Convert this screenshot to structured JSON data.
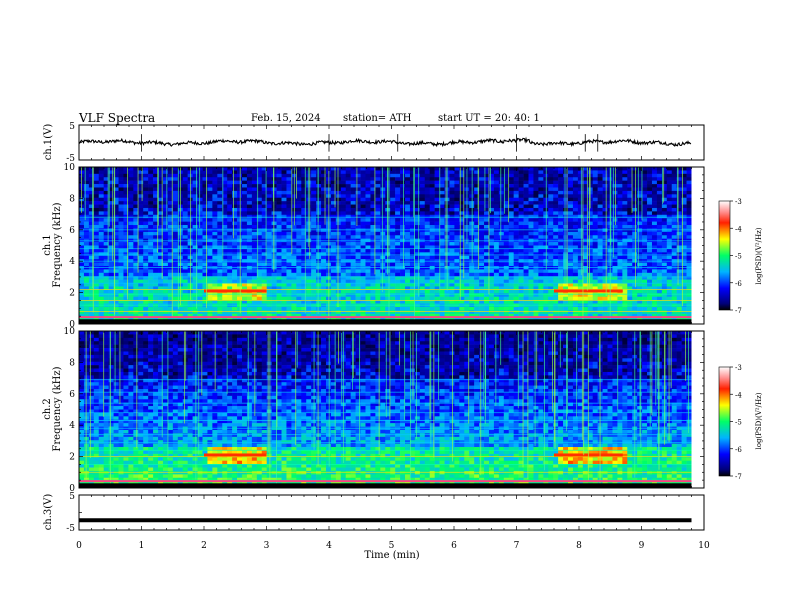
{
  "header": {
    "title": "VLF  Spectra",
    "date": "Feb. 15, 2024",
    "station": "station= ATH",
    "start_ut": "start  UT  =    20: 40: 1"
  },
  "chart_data": [
    {
      "id": "ch1-waveform",
      "type": "line",
      "ylabel": "ch.1(V)",
      "xlim": [
        0,
        10
      ],
      "ylim": [
        -5,
        5
      ],
      "yticks": [
        "5",
        "-5"
      ],
      "trace_end_min": 9.8,
      "trace_level_v": 0,
      "spikes_min": [
        1.0,
        4.0,
        5.1,
        7.0,
        8.1,
        8.3
      ]
    },
    {
      "id": "ch1-spectrogram",
      "type": "heatmap",
      "ylabel_top": "ch.1",
      "ylabel": "Frequency  (kHz)",
      "xlim": [
        0,
        10
      ],
      "ylim": [
        0,
        10
      ],
      "yticks": [
        "0",
        "2",
        "4",
        "6",
        "8",
        "10"
      ],
      "colorbar": {
        "label": "log(PSD)(V²/Hz)",
        "range": [
          -7,
          -3
        ],
        "ticks": [
          "-3",
          "-4",
          "-5",
          "-6",
          "-7"
        ]
      },
      "bands_khz": [
        0.4,
        0.8,
        1.2,
        1.5,
        1.9,
        2.2,
        2.6,
        3.0,
        3.6,
        4.0,
        4.4,
        4.8,
        5.3,
        6.0,
        6.8
      ],
      "intense_intervals_min": [
        [
          2.0,
          3.0
        ],
        [
          7.6,
          8.7
        ]
      ]
    },
    {
      "id": "ch2-spectrogram",
      "type": "heatmap",
      "ylabel_top": "ch.2",
      "ylabel": "Frequency  (kHz)",
      "xlim": [
        0,
        10
      ],
      "ylim": [
        0,
        10
      ],
      "yticks": [
        "0",
        "2",
        "4",
        "6",
        "8",
        "10"
      ],
      "colorbar": {
        "label": "log(PSD)(V²/Hz)",
        "range": [
          -7,
          -3
        ],
        "ticks": [
          "-3",
          "-4",
          "-5",
          "-6",
          "-7"
        ]
      },
      "bands_khz": [
        0.5,
        1.0,
        1.5,
        2.0,
        2.4,
        2.9,
        3.4,
        3.8,
        4.3,
        4.8,
        5.4,
        6.1,
        6.9
      ],
      "intense_intervals_min": [
        [
          2.0,
          3.0
        ],
        [
          7.6,
          8.7
        ]
      ]
    },
    {
      "id": "ch3-waveform",
      "type": "line",
      "ylabel": "ch.3(V)",
      "xlim": [
        0,
        10
      ],
      "ylim": [
        -5,
        5
      ],
      "yticks": [
        "5",
        "-5"
      ],
      "trace_end_min": 9.8,
      "trace_level_v": -2.2
    }
  ],
  "xaxis": {
    "label": "Time  (min)",
    "ticks": [
      "0",
      "1",
      "2",
      "3",
      "4",
      "5",
      "6",
      "7",
      "8",
      "9",
      "10"
    ]
  }
}
